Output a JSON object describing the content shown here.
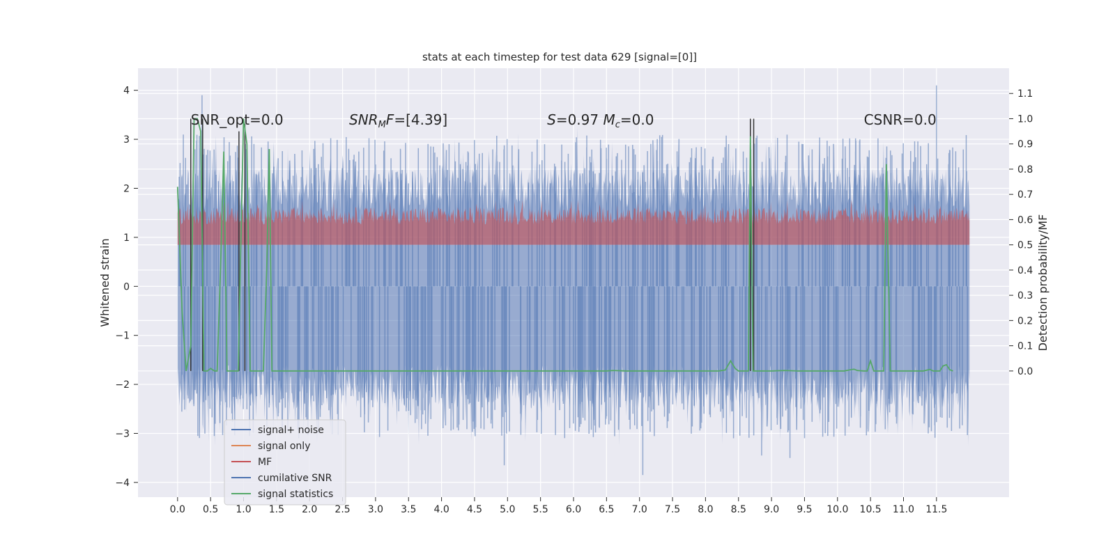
{
  "chart_data": {
    "type": "line",
    "title": "stats at each timestep for test data 629 [signal=[0]]",
    "xlabel": "",
    "ylabel": "Whitened strain",
    "ylabel_right": "Detection probability/MF",
    "xlim": [
      -0.6,
      12.6
    ],
    "ylim": [
      -4.3,
      4.45
    ],
    "ylim_right": [
      -0.5,
      1.2
    ],
    "x_ticks": [
      "0.0",
      "0.5",
      "1.0",
      "1.5",
      "2.0",
      "2.5",
      "3.0",
      "3.5",
      "4.0",
      "4.5",
      "5.0",
      "5.5",
      "6.0",
      "6.5",
      "7.0",
      "7.5",
      "8.0",
      "8.5",
      "9.0",
      "9.5",
      "10.0",
      "10.5",
      "11.0",
      "11.5"
    ],
    "y_ticks": [
      "−4",
      "−3",
      "−2",
      "−1",
      "0",
      "1",
      "2",
      "3",
      "4"
    ],
    "y_ticks_right": [
      "0.0",
      "0.1",
      "0.2",
      "0.3",
      "0.4",
      "0.5",
      "0.6",
      "0.7",
      "0.8",
      "0.9",
      "1.0",
      "1.1"
    ],
    "grid": true,
    "background": "#eaeaf2",
    "annotations": [
      {
        "text": "SNR_opt=0.0",
        "x": 0.2,
        "y": 3.3
      },
      {
        "text": "SNR_MF=[4.39]",
        "x": 2.6,
        "y": 3.3
      },
      {
        "text": "S=0.97   M_c=0.0",
        "x": 5.6,
        "y": 3.3
      },
      {
        "text": "CSNR=0.0",
        "x": 10.4,
        "y": 3.3
      }
    ],
    "legend": {
      "position": "lower left",
      "entries": [
        {
          "label": "signal+ noise",
          "color": "#4c72b0"
        },
        {
          "label": "signal only",
          "color": "#dd8452"
        },
        {
          "label": "MF",
          "color": "#c44e52"
        },
        {
          "label": "cumilative SNR",
          "color": "#4c72b0"
        },
        {
          "label": "signal statistics",
          "color": "#55a868"
        }
      ]
    },
    "series": [
      {
        "name": "signal+ noise",
        "color": "#4c72b0",
        "axis": "left",
        "x_range": [
          0,
          12
        ],
        "typical_min": -3.0,
        "typical_max": 3.0,
        "extremes": [
          {
            "x": 0.37,
            "y": 3.9
          },
          {
            "x": 11.5,
            "y": 4.1
          },
          {
            "x": 7.05,
            "y": -3.85
          },
          {
            "x": 4.95,
            "y": -3.65
          },
          {
            "x": 8.85,
            "y": -3.45
          },
          {
            "x": 9.28,
            "y": -3.5
          }
        ]
      },
      {
        "name": "MF",
        "color": "#c44e52",
        "axis": "right",
        "x_range": [
          0,
          12
        ],
        "base": 0.5,
        "typical_max": 0.65,
        "peak": 0.68
      },
      {
        "name": "signal statistics",
        "color": "#55a868",
        "axis": "right",
        "points": [
          [
            0.0,
            0.73
          ],
          [
            0.07,
            0.23
          ],
          [
            0.13,
            0.0
          ],
          [
            0.2,
            0.1
          ],
          [
            0.25,
            1.0
          ],
          [
            0.3,
            1.0
          ],
          [
            0.35,
            0.95
          ],
          [
            0.4,
            0.0
          ],
          [
            0.45,
            0.0
          ],
          [
            0.5,
            0.01
          ],
          [
            0.56,
            0.0
          ],
          [
            0.6,
            0.0
          ],
          [
            0.65,
            0.4
          ],
          [
            0.7,
            0.87
          ],
          [
            0.75,
            0.0
          ],
          [
            0.85,
            0.0
          ],
          [
            0.92,
            0.0
          ],
          [
            0.95,
            0.4
          ],
          [
            1.0,
            1.0
          ],
          [
            1.05,
            0.9
          ],
          [
            1.1,
            0.0
          ],
          [
            1.3,
            0.0
          ],
          [
            1.35,
            0.4
          ],
          [
            1.39,
            0.88
          ],
          [
            1.43,
            0.0
          ],
          [
            1.6,
            0.0
          ],
          [
            2.4,
            0.0
          ],
          [
            3.5,
            0.0
          ],
          [
            4.5,
            0.0
          ],
          [
            5.5,
            0.0
          ],
          [
            6.5,
            0.0
          ],
          [
            6.6,
            0.002
          ],
          [
            6.8,
            0.0
          ],
          [
            8.2,
            0.0
          ],
          [
            8.3,
            0.004
          ],
          [
            8.38,
            0.04
          ],
          [
            8.45,
            0.01
          ],
          [
            8.5,
            0.0
          ],
          [
            8.65,
            0.0
          ],
          [
            8.68,
            0.93
          ],
          [
            8.72,
            0.0
          ],
          [
            8.8,
            0.0
          ],
          [
            9.0,
            0.0
          ],
          [
            9.2,
            0.002
          ],
          [
            9.4,
            0.0
          ],
          [
            10.1,
            0.0
          ],
          [
            10.2,
            0.005
          ],
          [
            10.25,
            0.007
          ],
          [
            10.3,
            0.002
          ],
          [
            10.4,
            0.0
          ],
          [
            10.45,
            0.0
          ],
          [
            10.5,
            0.04
          ],
          [
            10.55,
            0.0
          ],
          [
            10.6,
            0.0
          ],
          [
            10.7,
            0.0
          ],
          [
            10.74,
            0.82
          ],
          [
            10.8,
            0.0
          ],
          [
            11.3,
            0.0
          ],
          [
            11.4,
            0.006
          ],
          [
            11.45,
            0.0
          ],
          [
            11.55,
            0.0
          ],
          [
            11.6,
            0.02
          ],
          [
            11.65,
            0.025
          ],
          [
            11.7,
            0.005
          ],
          [
            11.75,
            0.0
          ]
        ]
      },
      {
        "name": "cumilative SNR",
        "color": "#4c72b0",
        "axis": "right",
        "points": []
      }
    ],
    "vertical_markers": [
      {
        "x": 0.2,
        "y_range": [
          0.0,
          1.0
        ]
      },
      {
        "x": 0.38,
        "y_range": [
          0.0,
          1.0
        ]
      },
      {
        "x": 0.93,
        "y_range": [
          0.0,
          0.95
        ]
      },
      {
        "x": 1.02,
        "y_range": [
          0.0,
          0.98
        ]
      },
      {
        "x": 8.68,
        "y_range": [
          0.0,
          1.0
        ]
      },
      {
        "x": 8.73,
        "y_range": [
          0.0,
          1.0
        ]
      }
    ]
  }
}
